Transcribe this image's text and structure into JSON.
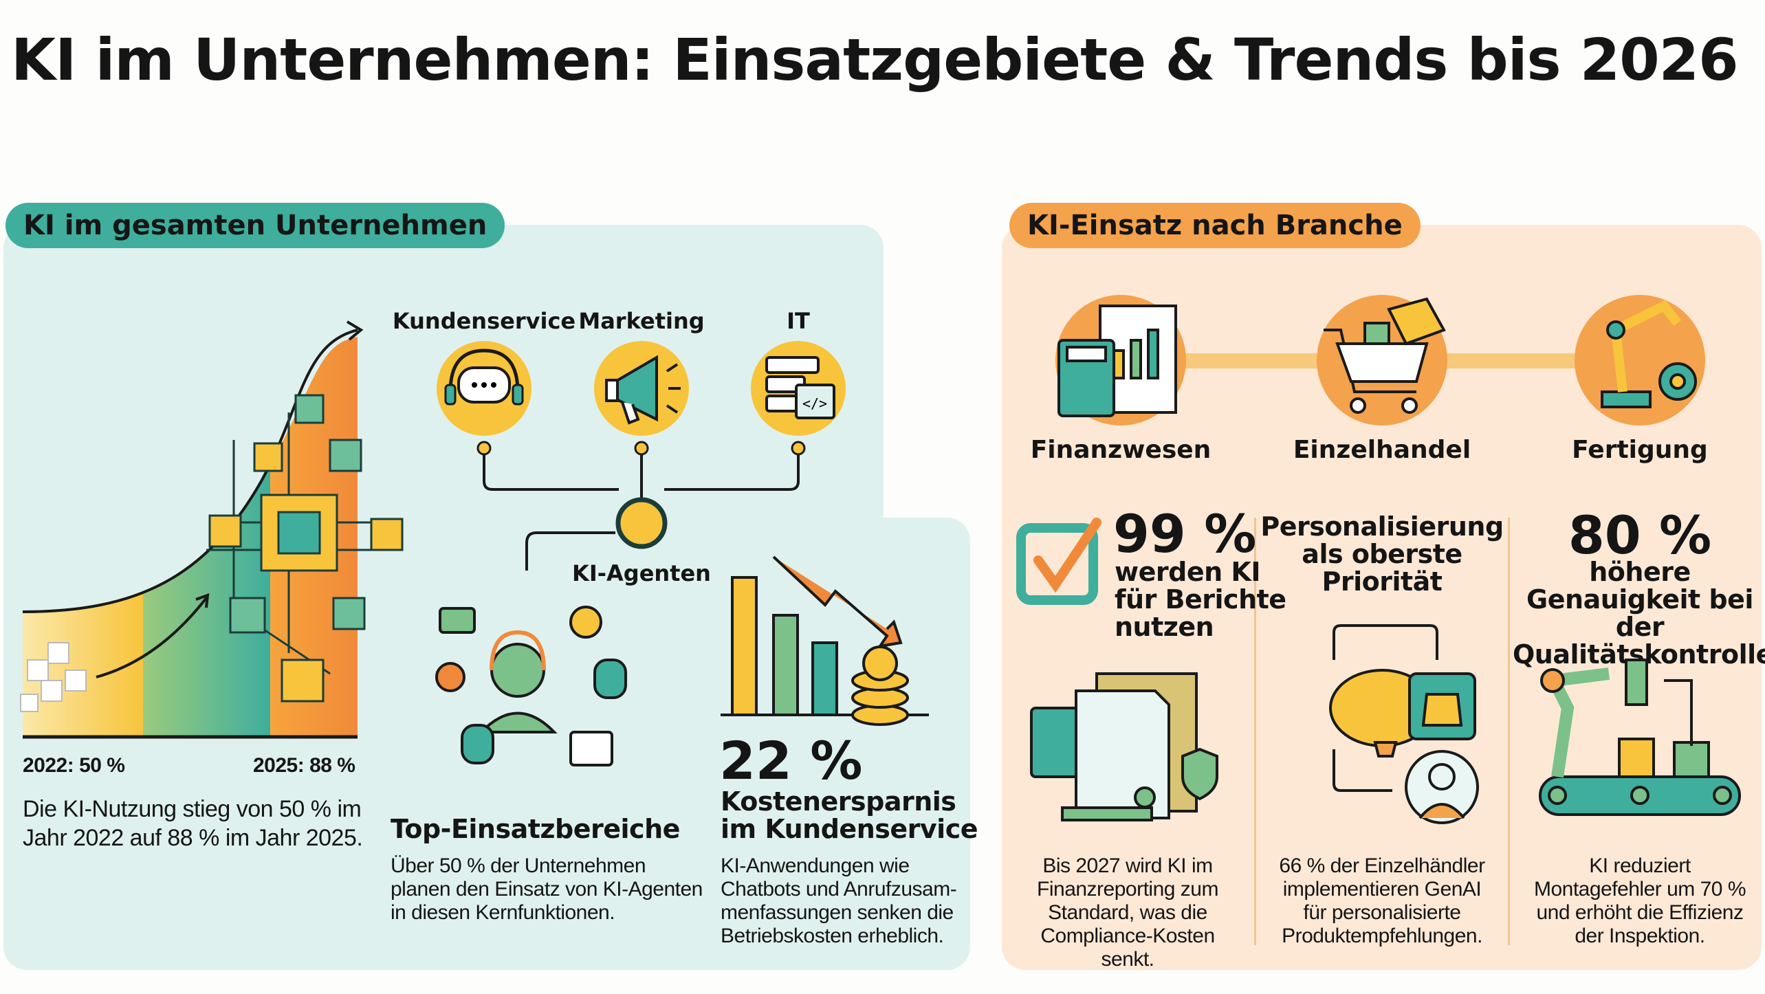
{
  "title": "KI im Unternehmen: Einsatzgebiete & Trends bis 2026",
  "colors": {
    "teal": "#3fae9c",
    "orange": "#f4a24c",
    "yellow": "#f7c43c",
    "green": "#7cc08a",
    "left_bg": "#dff1ee",
    "right_bg": "#fde8d6"
  },
  "left": {
    "pill": "KI im gesamten Unternehmen",
    "growth": {
      "label_2022": "2022: 50 %",
      "label_2025": "2025: 88 %",
      "value_2022": 50,
      "value_2025": 88,
      "desc": [
        "Die KI-Nutzung stieg von 50 % im",
        "Jahr 2022 auf 88 % im Jahr 2025."
      ]
    },
    "functions": [
      {
        "label": "Kundenservice",
        "icon": "headset-chat-icon"
      },
      {
        "label": "Marketing",
        "icon": "megaphone-icon"
      },
      {
        "label": "IT",
        "icon": "server-code-icon"
      }
    ],
    "hub_label": "KI-Agenten",
    "top": {
      "heading": "Top-Einsatzbereiche",
      "desc": [
        "Über 50 % der Unternehmen",
        "planen den Einsatz von KI-Agenten",
        "in diesen Kernfunktionen."
      ]
    },
    "savings": {
      "value": "22 %",
      "heading": [
        "Kostenersparnis",
        "im Kundenservice"
      ],
      "desc": [
        "KI-Anwendungen wie",
        "Chatbots und Anrufzusam-",
        "menfassungen senken die",
        "Betriebskosten erheblich."
      ]
    }
  },
  "right": {
    "pill": "KI-Einsatz nach Branche",
    "industries": [
      {
        "label": "Finanzwesen",
        "icon": "calculator-report-icon"
      },
      {
        "label": "Einzelhandel",
        "icon": "shopping-cart-icon"
      },
      {
        "label": "Fertigung",
        "icon": "robot-arm-icon"
      }
    ],
    "finance": {
      "value": "99 %",
      "lines": [
        "werden KI",
        "für Berichte",
        "nutzen"
      ],
      "desc": [
        "Bis 2027 wird KI im",
        "Finanzreporting zum",
        "Standard, was die",
        "Compliance-Kosten",
        "senkt."
      ]
    },
    "retail": {
      "lines": [
        "Personalisierung",
        "als oberste",
        "Priorität"
      ],
      "desc": [
        "66 % der Einzelhändler",
        "implementieren GenAI",
        "für personalisierte",
        "Produktempfehlungen."
      ]
    },
    "manufacturing": {
      "value": "80 %",
      "lines": [
        "höhere",
        "Genauigkeit bei der",
        "Qualitätskontrolle"
      ],
      "desc": [
        "KI reduziert",
        "Montagefehler um 70 %",
        "und erhöht die Effizienz",
        "der Inspektion."
      ]
    }
  }
}
